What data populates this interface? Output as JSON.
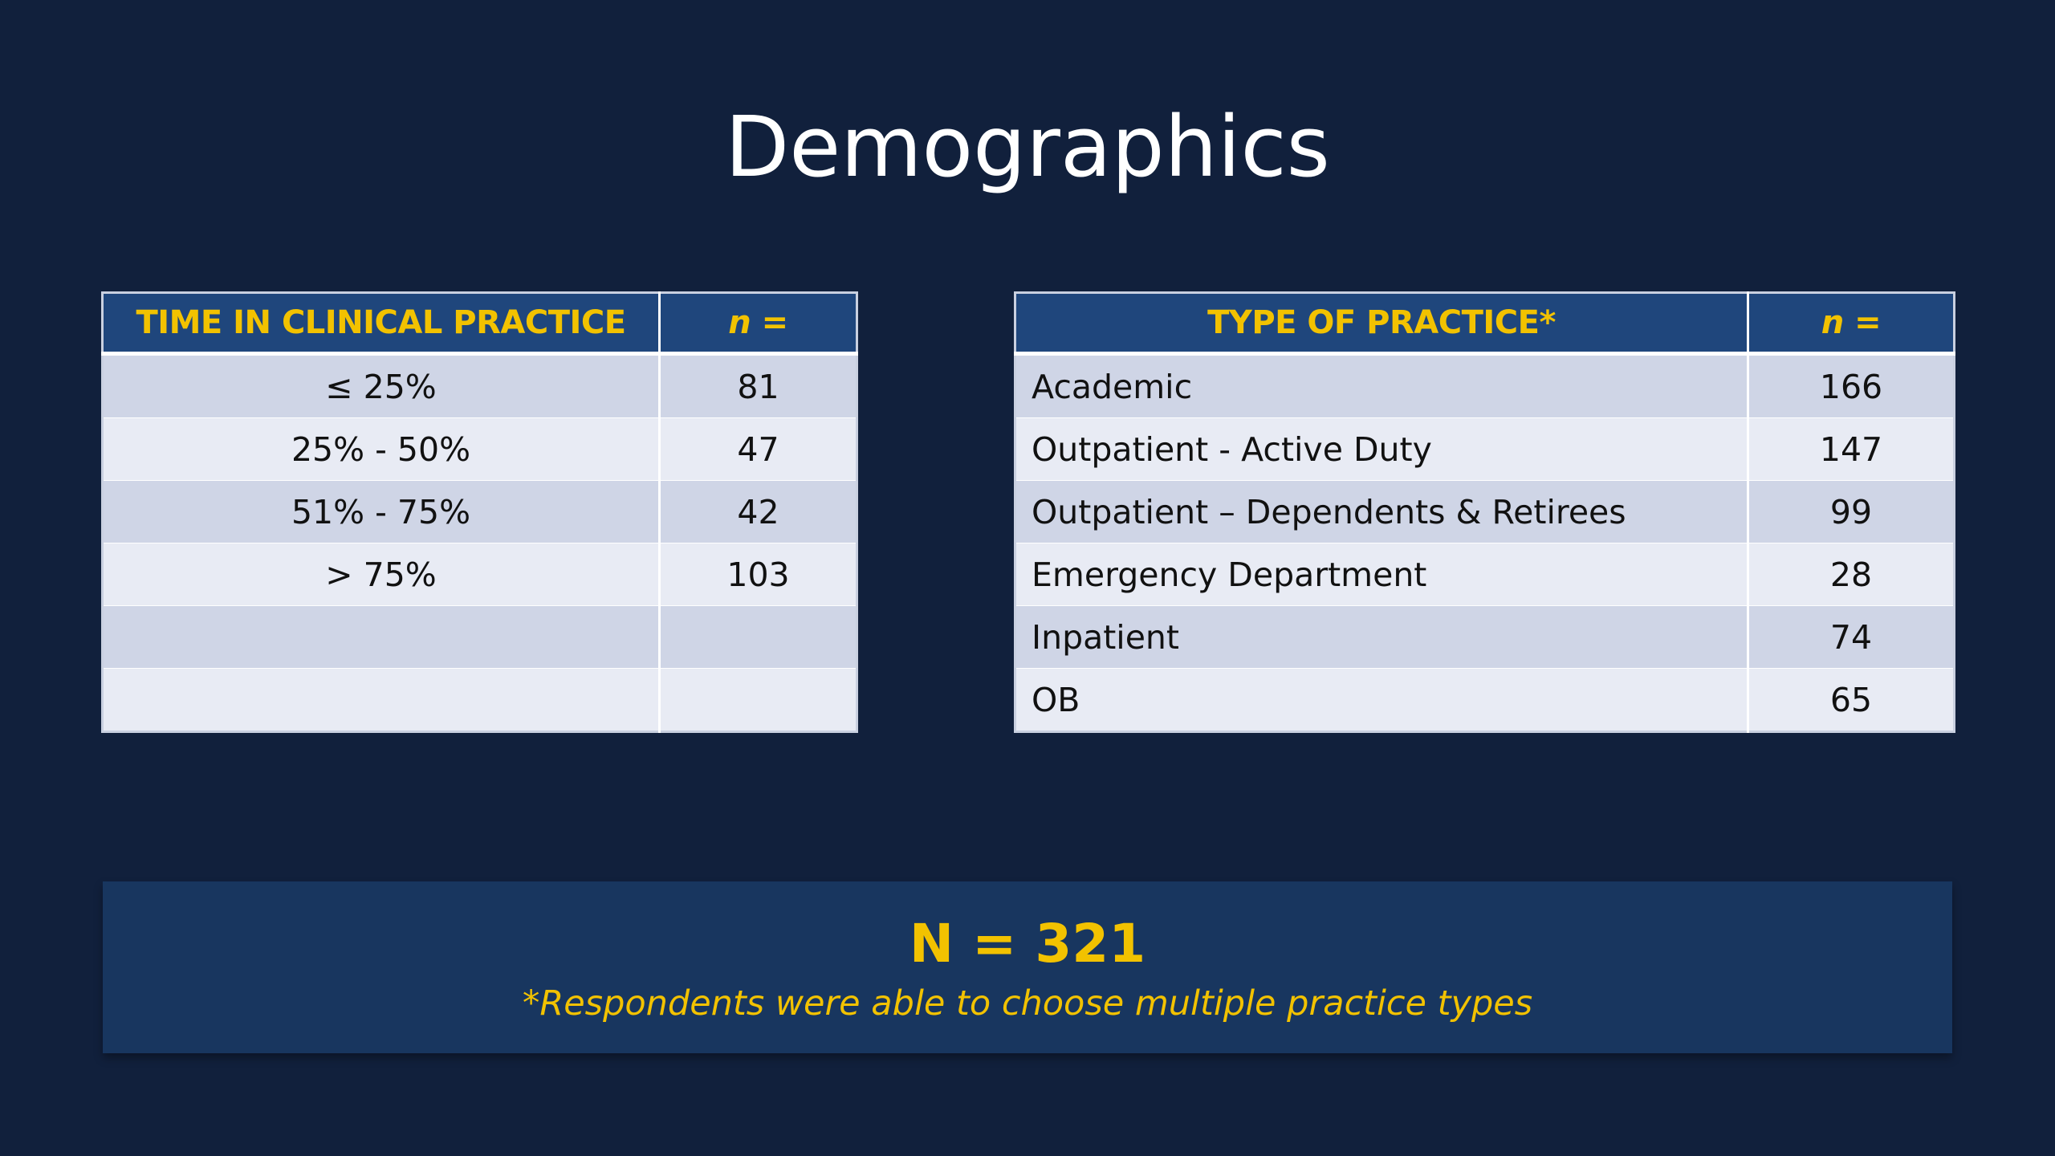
{
  "slide": {
    "title": "Demographics"
  },
  "table_time": {
    "headers": [
      "TIME IN CLINICAL PRACTICE",
      "n ="
    ],
    "rows": [
      [
        "≤ 25%",
        "81"
      ],
      [
        "25% - 50%",
        "47"
      ],
      [
        "51% - 75%",
        "42"
      ],
      [
        "> 75%",
        "103"
      ],
      [
        "",
        ""
      ],
      [
        "",
        ""
      ]
    ]
  },
  "table_type": {
    "headers": [
      "TYPE OF PRACTICE*",
      "n ="
    ],
    "rows": [
      [
        "Academic",
        "166"
      ],
      [
        "Outpatient - Active Duty",
        "147"
      ],
      [
        "Outpatient – Dependents & Retirees",
        "99"
      ],
      [
        "Emergency Department",
        "28"
      ],
      [
        "Inpatient",
        "74"
      ],
      [
        "OB",
        "65"
      ]
    ]
  },
  "summary": {
    "total": "N = 321",
    "note": "*Respondents were able to choose multiple practice types"
  },
  "colors": {
    "background": "#11203c",
    "header_fill": "#1f467c",
    "accent_gold": "#f2c200",
    "row_odd": "#cfd5e6",
    "row_even": "#e8ebf4",
    "summary_fill": "#18365f"
  }
}
